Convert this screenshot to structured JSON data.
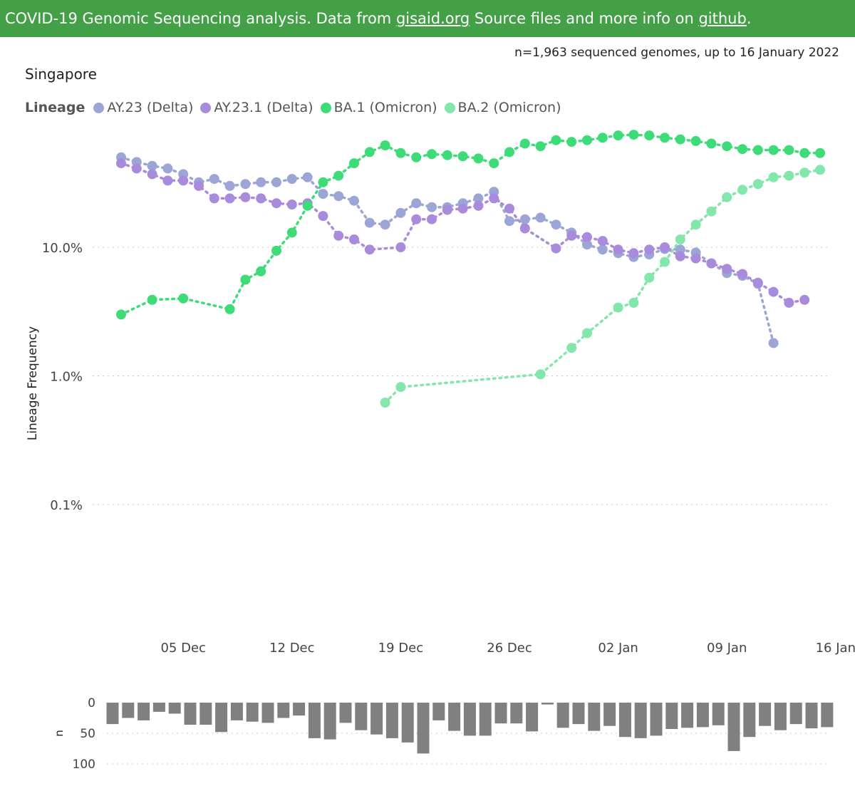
{
  "banner": {
    "text1": "COVID-19 Genomic Sequencing analysis. Data from ",
    "link1": "gisaid.org",
    "text2": " Source files and more info on ",
    "link2": "github",
    "text3": "."
  },
  "subtitle": "n=1,963 sequenced genomes, up to 16 January 2022",
  "country": "Singapore",
  "legend_title": "Lineage",
  "chart_data": [
    {
      "type": "line",
      "title": "Singapore",
      "ylabel": "Lineage Frequency",
      "yscale": "log",
      "ylim": [
        0.01,
        80
      ],
      "y_ticks": [
        {
          "value": 10,
          "label": "10.0%"
        },
        {
          "value": 1,
          "label": "1.0%"
        },
        {
          "value": 0.1,
          "label": "0.1%"
        }
      ],
      "x_ticks": [
        {
          "day": 4,
          "label": "05 Dec"
        },
        {
          "day": 11,
          "label": "12 Dec"
        },
        {
          "day": 18,
          "label": "19 Dec"
        },
        {
          "day": 25,
          "label": "26 Dec"
        },
        {
          "day": 32,
          "label": "02 Jan"
        },
        {
          "day": 39,
          "label": "09 Jan"
        },
        {
          "day": 46,
          "label": "16 Jan"
        }
      ],
      "x_note": "day 0 = 01 Dec 2021",
      "legend_position": "top-left",
      "series": [
        {
          "name": "AY.23 (Delta)",
          "color": "#9ba6d6",
          "points": [
            [
              0,
              50
            ],
            [
              1,
              46
            ],
            [
              2,
              43
            ],
            [
              3,
              41
            ],
            [
              4,
              37
            ],
            [
              5,
              32
            ],
            [
              6,
              34
            ],
            [
              7,
              30
            ],
            [
              8,
              31
            ],
            [
              9,
              32
            ],
            [
              10,
              32
            ],
            [
              11,
              34
            ],
            [
              12,
              35
            ],
            [
              13,
              26
            ],
            [
              14,
              25
            ],
            [
              15,
              23
            ],
            [
              16,
              15.5
            ],
            [
              17,
              15
            ],
            [
              18,
              18.5
            ],
            [
              19,
              22
            ],
            [
              20,
              20.5
            ],
            [
              21,
              20.5
            ],
            [
              22,
              22
            ],
            [
              23,
              24
            ],
            [
              24,
              27
            ],
            [
              25,
              16
            ],
            [
              26,
              16.5
            ],
            [
              27,
              17
            ],
            [
              28,
              15
            ],
            [
              29,
              13
            ],
            [
              30,
              10.5
            ],
            [
              31,
              9.6
            ],
            [
              32,
              9
            ],
            [
              33,
              8.4
            ],
            [
              34,
              8.8
            ],
            [
              35,
              9.7
            ],
            [
              36,
              9.6
            ],
            [
              37,
              9.1
            ],
            [
              38,
              7.5
            ],
            [
              39,
              6.3
            ],
            [
              40,
              6
            ],
            [
              41,
              5.2
            ],
            [
              42,
              1.8
            ]
          ]
        },
        {
          "name": "AY.23.1 (Delta)",
          "color": "#a98bdb",
          "points": [
            [
              0,
              45
            ],
            [
              1,
              41
            ],
            [
              2,
              37
            ],
            [
              3,
              33
            ],
            [
              4,
              33
            ],
            [
              5,
              30
            ],
            [
              6,
              24
            ],
            [
              7,
              24
            ],
            [
              8,
              24.5
            ],
            [
              9,
              24
            ],
            [
              10,
              22
            ],
            [
              11,
              21.5
            ],
            [
              12,
              22
            ],
            [
              13,
              17.5
            ],
            [
              14,
              12.3
            ],
            [
              15,
              11.5
            ],
            [
              16,
              9.6
            ],
            [
              18,
              10
            ],
            [
              19,
              16.5
            ],
            [
              20,
              16.5
            ],
            [
              21,
              19.5
            ],
            [
              22,
              20
            ],
            [
              23,
              21
            ],
            [
              24,
              24
            ],
            [
              25,
              20
            ],
            [
              26,
              14
            ],
            [
              28,
              9.8
            ],
            [
              29,
              12.3
            ],
            [
              30,
              12
            ],
            [
              31,
              11.2
            ],
            [
              32,
              9.6
            ],
            [
              33,
              9
            ],
            [
              34,
              9.6
            ],
            [
              35,
              10
            ],
            [
              36,
              8.5
            ],
            [
              37,
              8.2
            ],
            [
              38,
              7.5
            ],
            [
              39,
              6.8
            ],
            [
              40,
              6.2
            ],
            [
              41,
              5.3
            ],
            [
              42,
              4.5
            ],
            [
              43,
              3.7
            ],
            [
              44,
              3.9
            ]
          ]
        },
        {
          "name": "BA.1 (Omicron)",
          "color": "#3ddc78",
          "points": [
            [
              0,
              3
            ],
            [
              2,
              3.9
            ],
            [
              4,
              4
            ],
            [
              7,
              3.3
            ],
            [
              8,
              5.6
            ],
            [
              9,
              6.5
            ],
            [
              10,
              9.4
            ],
            [
              11,
              13
            ],
            [
              12,
              21
            ],
            [
              13,
              32
            ],
            [
              14,
              36
            ],
            [
              15,
              45
            ],
            [
              16,
              55
            ],
            [
              17,
              62
            ],
            [
              18,
              54
            ],
            [
              19,
              50
            ],
            [
              20,
              53
            ],
            [
              21,
              52
            ],
            [
              22,
              51
            ],
            [
              23,
              49
            ],
            [
              24,
              45
            ],
            [
              25,
              55
            ],
            [
              26,
              64
            ],
            [
              27,
              61
            ],
            [
              28,
              68
            ],
            [
              29,
              66
            ],
            [
              30,
              68
            ],
            [
              31,
              71
            ],
            [
              32,
              74
            ],
            [
              33,
              75
            ],
            [
              34,
              74
            ],
            [
              35,
              71
            ],
            [
              36,
              69
            ],
            [
              37,
              67
            ],
            [
              38,
              64
            ],
            [
              39,
              61
            ],
            [
              40,
              58
            ],
            [
              41,
              57
            ],
            [
              42,
              57
            ],
            [
              43,
              57
            ],
            [
              44,
              54
            ],
            [
              45,
              54
            ]
          ]
        },
        {
          "name": "BA.2 (Omicron)",
          "color": "#83e6aa",
          "points": [
            [
              17,
              0.62
            ],
            [
              18,
              0.82
            ],
            [
              27,
              1.03
            ],
            [
              29,
              1.65
            ],
            [
              30,
              2.15
            ],
            [
              32,
              3.4
            ],
            [
              33,
              3.7
            ],
            [
              34,
              5.8
            ],
            [
              35,
              7.7
            ],
            [
              36,
              11.5
            ],
            [
              37,
              15
            ],
            [
              38,
              19
            ],
            [
              39,
              24.5
            ],
            [
              40,
              28
            ],
            [
              41,
              31
            ],
            [
              42,
              35
            ],
            [
              43,
              36
            ],
            [
              44,
              38
            ],
            [
              45,
              40
            ]
          ]
        }
      ]
    },
    {
      "type": "bar",
      "ylabel": "n",
      "y_ticks": [
        0,
        50,
        100
      ],
      "ylim": [
        0,
        100
      ],
      "orientation": "downward",
      "values": [
        35,
        25,
        29,
        15,
        18,
        36,
        36,
        48,
        29,
        31,
        33,
        25,
        21,
        58,
        60,
        33,
        45,
        52,
        58,
        65,
        83,
        29,
        46,
        54,
        54,
        34,
        34,
        47,
        3,
        41,
        35,
        46,
        38,
        56,
        58,
        54,
        43,
        41,
        40,
        37,
        79,
        56,
        38,
        45,
        35,
        42,
        40
      ]
    }
  ]
}
